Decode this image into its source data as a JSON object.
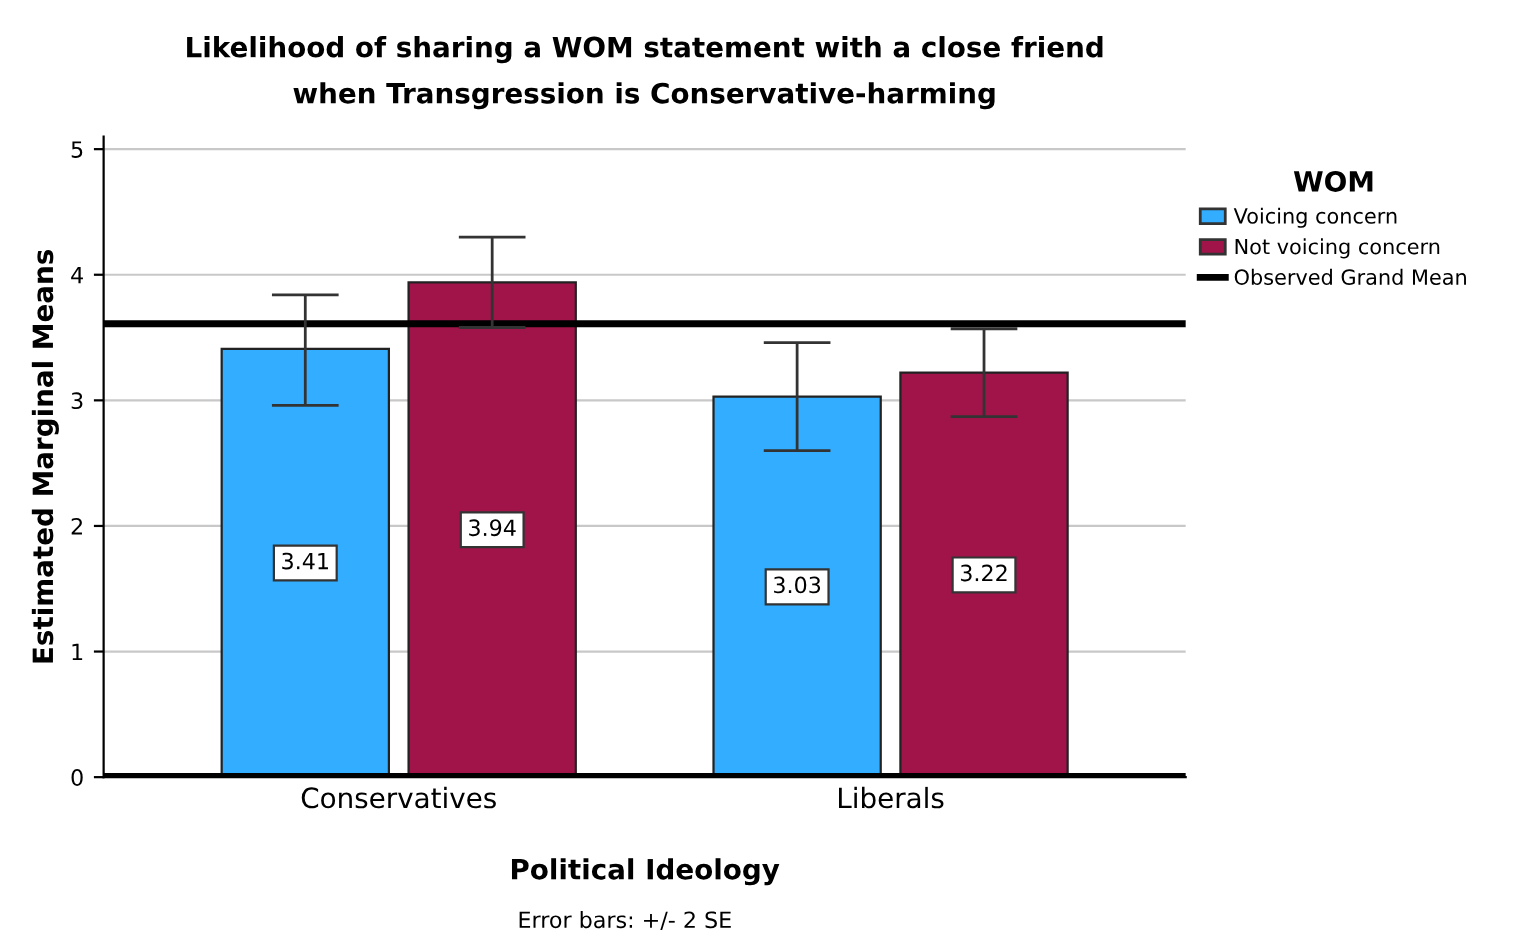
{
  "chart_data": {
    "type": "bar",
    "title": "Likelihood of sharing a WOM statement with a close friend\nwhen Transgression is Conservative-harming",
    "xlabel": "Political Ideology",
    "ylabel": "Estimated Marginal Means",
    "legend_title": "WOM",
    "categories": [
      "Conservatives",
      "Liberals"
    ],
    "series": [
      {
        "name": "Voicing concern",
        "color": "#33adff",
        "values": [
          3.41,
          3.03
        ],
        "errors": [
          [
            2.96,
            3.84
          ],
          [
            2.6,
            3.46
          ]
        ]
      },
      {
        "name": "Not voicing concern",
        "color": "#a0144a",
        "values": [
          3.94,
          3.22
        ],
        "errors": [
          [
            3.58,
            4.3
          ],
          [
            2.87,
            3.57
          ]
        ]
      }
    ],
    "ref_lines": [
      {
        "axis": "y",
        "value": 3.61,
        "label": "Observed Grand Mean",
        "color": "#000000"
      }
    ],
    "ylim": [
      0,
      5.1
    ],
    "yticks": [
      0,
      1,
      2,
      3,
      4,
      5
    ],
    "grid": "y",
    "legend": "right",
    "data_labels": true,
    "annotations": [
      "Error bars: +/- 2 SE"
    ]
  }
}
